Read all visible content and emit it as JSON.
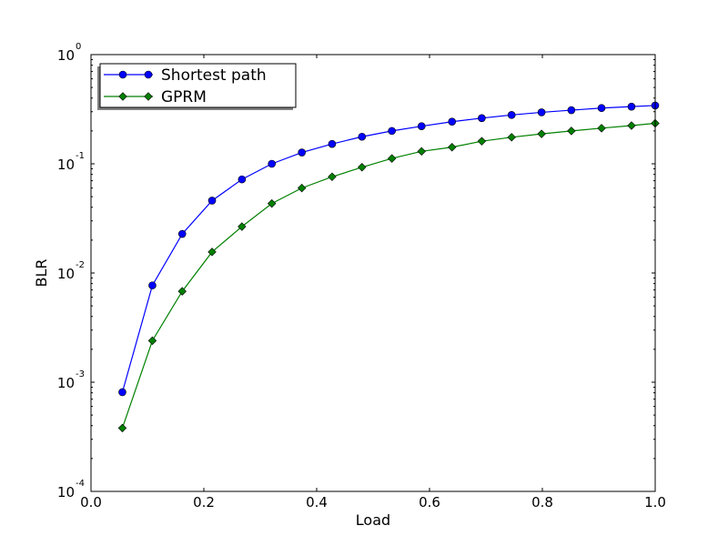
{
  "chart_data": {
    "type": "line",
    "title": "",
    "xlabel": "Load",
    "ylabel": "BLR",
    "xlim": [
      0.0,
      1.0
    ],
    "ylim": [
      0.0001,
      1
    ],
    "y_scale": "log",
    "grid": false,
    "legend_position": "top-left",
    "x_ticks": [
      {
        "value": 0.0,
        "label": "0.0"
      },
      {
        "value": 0.2,
        "label": "0.2"
      },
      {
        "value": 0.4,
        "label": "0.4"
      },
      {
        "value": 0.6,
        "label": "0.6"
      },
      {
        "value": 0.8,
        "label": "0.8"
      },
      {
        "value": 1.0,
        "label": "1.0"
      }
    ],
    "y_ticks": [
      {
        "value": 0.0001,
        "base": "10",
        "exp": "-4"
      },
      {
        "value": 0.001,
        "base": "10",
        "exp": "-3"
      },
      {
        "value": 0.01,
        "base": "10",
        "exp": "-2"
      },
      {
        "value": 0.1,
        "base": "10",
        "exp": "-1"
      },
      {
        "value": 1,
        "base": "10",
        "exp": "0"
      }
    ],
    "x": [
      0.0556,
      0.1088,
      0.1617,
      0.2146,
      0.2675,
      0.3205,
      0.3737,
      0.4273,
      0.4803,
      0.5333,
      0.5859,
      0.6399,
      0.6926,
      0.7455,
      0.7986,
      0.8514,
      0.9049,
      0.958,
      1.0
    ],
    "series": [
      {
        "name": "Shortest path",
        "color": "#0000ff",
        "marker": "circle",
        "values": [
          0.00081,
          0.0077,
          0.0228,
          0.046,
          0.072,
          0.1,
          0.127,
          0.152,
          0.177,
          0.2,
          0.221,
          0.243,
          0.262,
          0.28,
          0.296,
          0.31,
          0.324,
          0.334,
          0.342
        ]
      },
      {
        "name": "GPRM",
        "color": "#008000",
        "marker": "diamond",
        "values": [
          0.00038,
          0.0024,
          0.0068,
          0.0156,
          0.0266,
          0.0433,
          0.06,
          0.076,
          0.093,
          0.112,
          0.13,
          0.142,
          0.161,
          0.175,
          0.188,
          0.2,
          0.212,
          0.224,
          0.235
        ]
      }
    ]
  }
}
